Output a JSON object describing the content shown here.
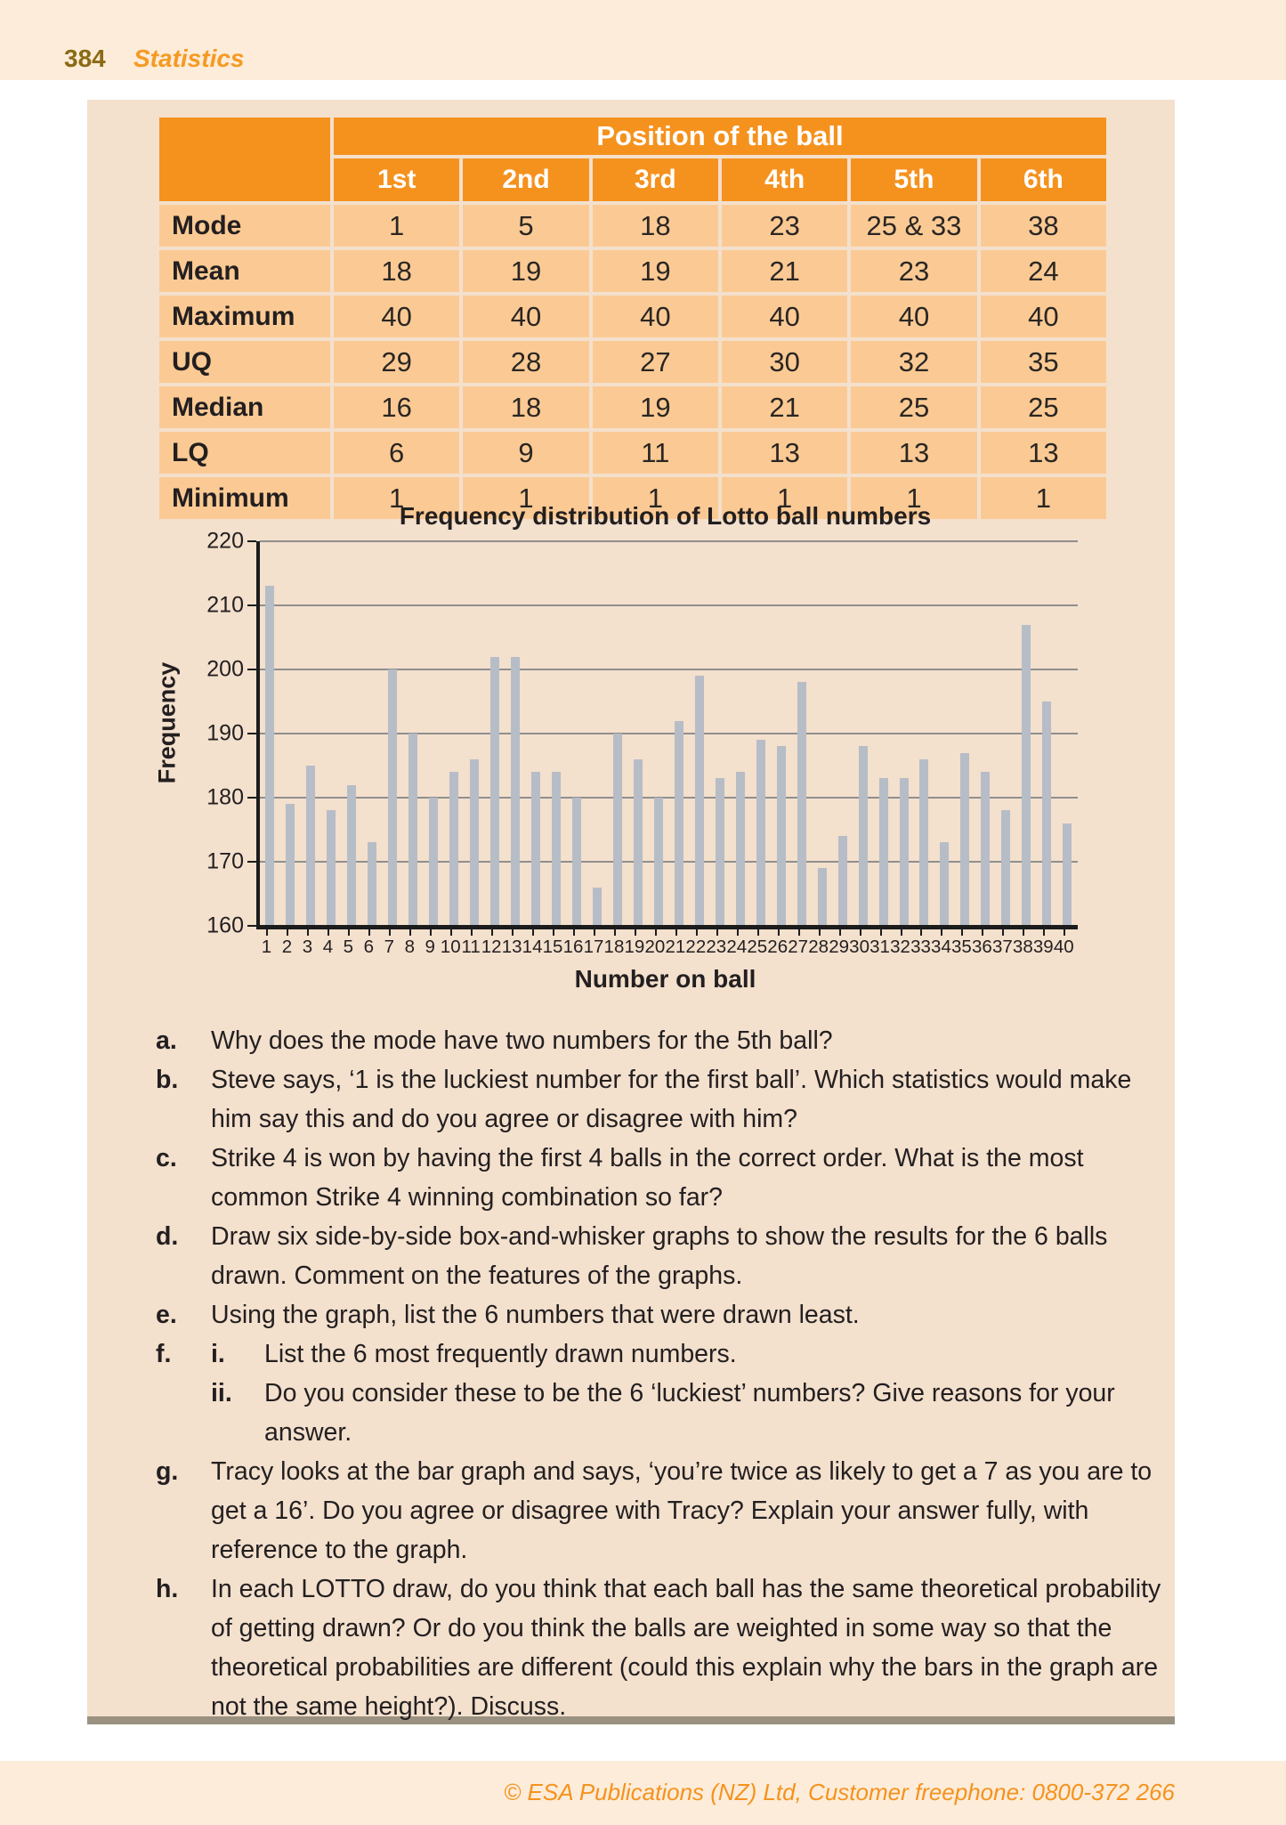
{
  "page": {
    "number": "384",
    "section": "Statistics"
  },
  "table": {
    "span_header": "Position of the ball",
    "col_headers": [
      "1st",
      "2nd",
      "3rd",
      "4th",
      "5th",
      "6th"
    ],
    "rows": [
      {
        "label": "Mode",
        "values": [
          "1",
          "5",
          "18",
          "23",
          "25 & 33",
          "38"
        ]
      },
      {
        "label": "Mean",
        "values": [
          "18",
          "19",
          "19",
          "21",
          "23",
          "24"
        ]
      },
      {
        "label": "Maximum",
        "values": [
          "40",
          "40",
          "40",
          "40",
          "40",
          "40"
        ]
      },
      {
        "label": "UQ",
        "values": [
          "29",
          "28",
          "27",
          "30",
          "32",
          "35"
        ]
      },
      {
        "label": "Median",
        "values": [
          "16",
          "18",
          "19",
          "21",
          "25",
          "25"
        ]
      },
      {
        "label": "LQ",
        "values": [
          "6",
          "9",
          "11",
          "13",
          "13",
          "13"
        ]
      },
      {
        "label": "Minimum",
        "values": [
          "1",
          "1",
          "1",
          "1",
          "1",
          "1"
        ]
      }
    ]
  },
  "chart_data": {
    "type": "bar",
    "title": "Frequency distribution of Lotto ball numbers",
    "xlabel": "Number on ball",
    "ylabel": "Frequency",
    "ylim": [
      160,
      220
    ],
    "yticks": [
      160,
      170,
      180,
      190,
      200,
      210,
      220
    ],
    "grid": true,
    "legend": "none",
    "bar_color": "#b6bdc6",
    "categories": [
      1,
      2,
      3,
      4,
      5,
      6,
      7,
      8,
      9,
      10,
      11,
      12,
      13,
      14,
      15,
      16,
      17,
      18,
      19,
      20,
      21,
      22,
      23,
      24,
      25,
      26,
      27,
      28,
      29,
      30,
      31,
      32,
      33,
      34,
      35,
      36,
      37,
      38,
      39,
      40
    ],
    "values": [
      213,
      179,
      185,
      178,
      182,
      173,
      200,
      190,
      180,
      184,
      186,
      202,
      202,
      184,
      184,
      180,
      166,
      190,
      186,
      180,
      192,
      199,
      183,
      184,
      189,
      188,
      198,
      169,
      174,
      188,
      183,
      183,
      186,
      173,
      187,
      184,
      178,
      207,
      195,
      176
    ]
  },
  "questions": {
    "items": [
      {
        "label": "a.",
        "text": "Why does the mode have two numbers for the 5th ball?"
      },
      {
        "label": "b.",
        "text": "Steve says, ‘1 is the luckiest number for the first ball’. Which statistics would make him say this and do you agree or disagree with him?"
      },
      {
        "label": "c.",
        "text": "Strike 4 is won by having the first 4 balls in the correct order. What is the most common Strike 4 winning combination so far?"
      },
      {
        "label": "d.",
        "text": "Draw six side-by-side box-and-whisker graphs to show the results for the 6 balls drawn. Comment on the features of the graphs."
      },
      {
        "label": "e.",
        "text": "Using the graph, list the 6 numbers that were drawn least."
      },
      {
        "label": "f.",
        "subitems": [
          {
            "label": "i.",
            "text": "List the 6 most frequently drawn numbers."
          },
          {
            "label": "ii.",
            "text": "Do you consider these to be the 6 ‘luckiest’ numbers? Give reasons for your answer."
          }
        ]
      },
      {
        "label": "g.",
        "text": "Tracy looks at the bar graph and says, ‘you’re twice as likely to get a 7 as you are to get a 16’. Do you agree or disagree with Tracy? Explain your answer fully, with reference to the graph."
      },
      {
        "label": "h.",
        "text": "In each LOTTO draw, do you think that each ball has the same theoretical probability of getting drawn? Or do you think the balls are weighted in some way so that the theoretical probabilities are different (could this explain why the bars in the graph are not the same height?). Discuss."
      }
    ]
  },
  "footer": {
    "text": "© ESA Publications (NZ) Ltd, Customer freephone: 0800-372 266"
  },
  "colors": {
    "band": "#fdecd9",
    "content_box": "#f3e0cd",
    "table_header_orange": "#f5921e",
    "table_cell_orange": "#fbca94",
    "bar_gray": "#b6bdc6",
    "box_bottom_border": "#9a9180",
    "footer_text_orange": "#f5921e",
    "page_number_brown": "#8a6a14"
  }
}
